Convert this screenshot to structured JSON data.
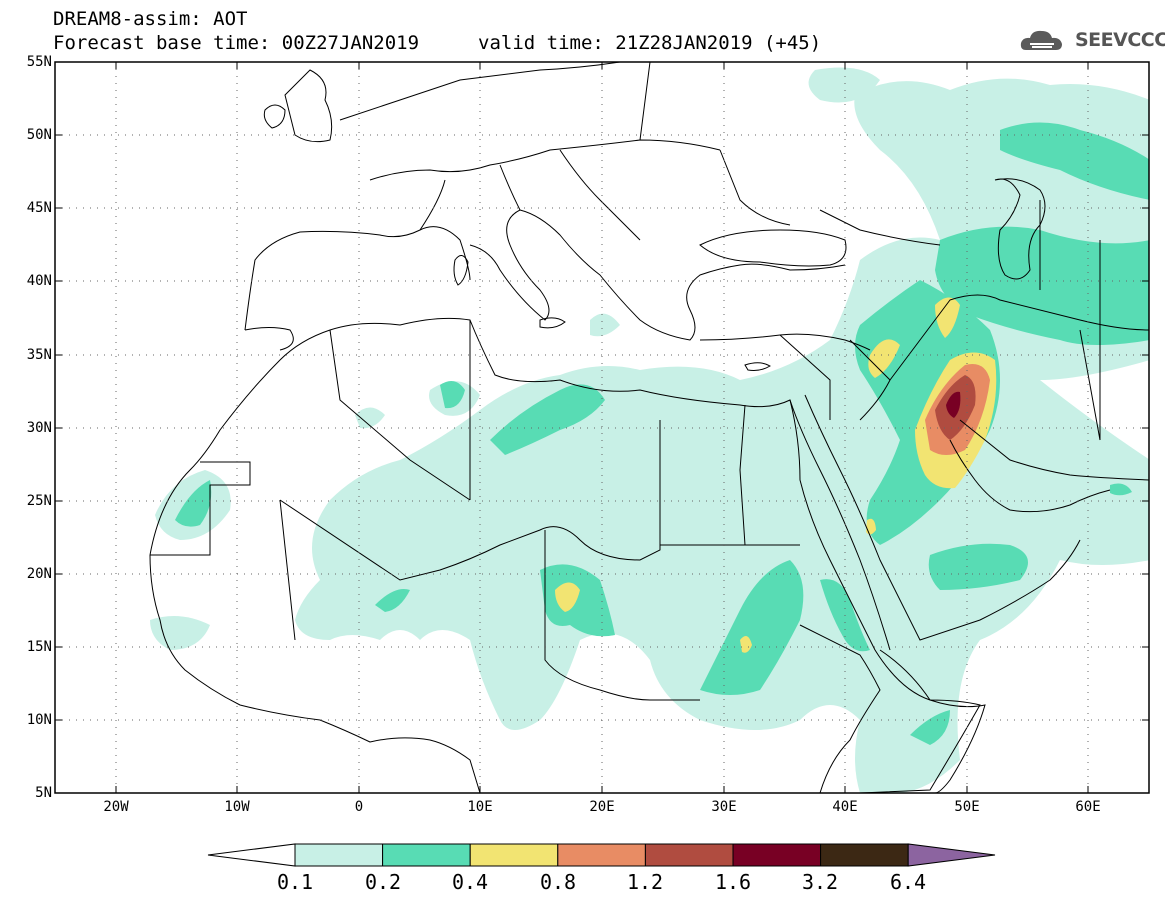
{
  "title": {
    "line1": "DREAM8-assim: AOT",
    "line2": "Forecast base time: 00Z27JAN2019",
    "line2b": "valid time: 21Z28JAN2019 (+45)"
  },
  "logo": {
    "text": "SEEVCCC",
    "icon": "cloud-icon"
  },
  "map": {
    "lon_range": [
      -25,
      65
    ],
    "lat_range": [
      5,
      55
    ],
    "lat_ticks": [
      "55N",
      "50N",
      "45N",
      "40N",
      "35N",
      "30N",
      "25N",
      "20N",
      "15N",
      "10N",
      "5N"
    ],
    "lon_ticks": [
      "20W",
      "10W",
      "0",
      "10E",
      "20E",
      "30E",
      "40E",
      "50E",
      "60E"
    ],
    "grid": "dotted"
  },
  "colorbar": {
    "labels": [
      "0.1",
      "0.2",
      "0.4",
      "0.8",
      "1.2",
      "1.6",
      "3.2",
      "6.4"
    ],
    "colors": [
      "#ffffff",
      "#c8f0e6",
      "#58dcb4",
      "#f2e472",
      "#e88c64",
      "#b04c40",
      "#780024",
      "#3c2814",
      "#8c64a0"
    ]
  }
}
